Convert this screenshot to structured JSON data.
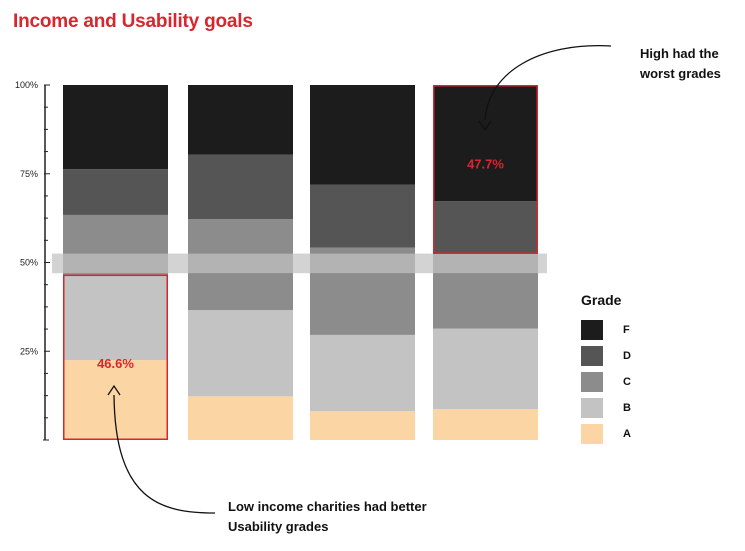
{
  "chart_data": {
    "type": "bar",
    "stacked": true,
    "title": "Income and Usability goals",
    "y_ticks": [
      "100%",
      "75%",
      "50%",
      "25%"
    ],
    "ylim": [
      0,
      100
    ],
    "bars": [
      {
        "segments": {
          "A": 22.5,
          "B": 24.1,
          "C": 16.8,
          "D": 12.9,
          "F": 23.7
        }
      },
      {
        "segments": {
          "A": 12.3,
          "B": 24.3,
          "C": 25.6,
          "D": 18.2,
          "F": 19.6
        }
      },
      {
        "segments": {
          "A": 8.1,
          "B": 21.5,
          "C": 24.6,
          "D": 17.7,
          "F": 28.1
        }
      },
      {
        "segments": {
          "A": 8.7,
          "B": 22.7,
          "C": 21.0,
          "D": 14.9,
          "F": 32.7
        }
      }
    ],
    "highlights": [
      {
        "bar": 0,
        "segments": [
          "A",
          "B"
        ],
        "label": "46.6%"
      },
      {
        "bar": 3,
        "segments": [
          "D",
          "F"
        ],
        "label": "47.7%"
      }
    ],
    "legend": {
      "title": "Grade",
      "placement": "right",
      "items": [
        {
          "grade": "F",
          "color": "#1c1c1c"
        },
        {
          "grade": "D",
          "color": "#555555"
        },
        {
          "grade": "C",
          "color": "#8c8c8c"
        },
        {
          "grade": "B",
          "color": "#c3c3c3"
        },
        {
          "grade": "A",
          "color": "#fbd5a3"
        }
      ]
    },
    "reference_band": {
      "from": 47,
      "to": 52.5,
      "color": "#d3d3d3"
    },
    "highlight_color": "#d8262f",
    "annotations": {
      "high": "High had the worst grades",
      "low": "Low income charities had better Usability grades"
    }
  }
}
